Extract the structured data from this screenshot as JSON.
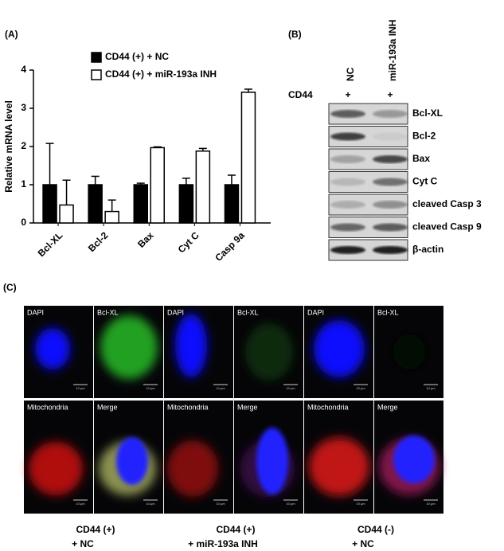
{
  "chart_data": {
    "type": "bar",
    "panel_label": "(A)",
    "y_label": "Relative mRNA level",
    "categories": [
      "Bcl-XL",
      "Bcl-2",
      "Bax",
      "Cyt C",
      "Casp 9a"
    ],
    "series": [
      {
        "name": "CD44 (+) + NC",
        "color": "#000000",
        "values": [
          1,
          1,
          1,
          1,
          1
        ],
        "errors": [
          1.08,
          0.22,
          0.04,
          0.17,
          0.25
        ]
      },
      {
        "name": "CD44 (+) + miR-193a INH",
        "color": "#ffffff",
        "values": [
          0.47,
          0.3,
          1.97,
          1.88,
          3.42
        ],
        "errors": [
          0.65,
          0.3,
          0.02,
          0.07,
          0.08
        ]
      }
    ],
    "ylim": [
      0,
      4
    ],
    "yticks": [
      0,
      1,
      2,
      3,
      4
    ],
    "grid": false
  },
  "panel_b": {
    "panel_label": "(B)",
    "lanes": [
      "NC",
      "miR-193a INH"
    ],
    "row_label": "CD44",
    "lane_marks": [
      "+",
      "+"
    ],
    "bands": [
      "Bcl-XL",
      "Bcl-2",
      "Bax",
      "Cyt C",
      "cleaved Casp 3",
      "cleaved Casp 9",
      "β-actin"
    ]
  },
  "panel_c": {
    "panel_label": "(C)",
    "scale_bar_label": "10 μm",
    "groups": [
      {
        "caption": [
          "CD44 (+)",
          "+ NC"
        ],
        "tiles": [
          "DAPI",
          "Bcl-XL",
          "Mitochondria",
          "Merge"
        ]
      },
      {
        "caption": [
          "CD44 (+)",
          "+ miR-193a INH"
        ],
        "tiles": [
          "DAPI",
          "Bcl-XL",
          "Mitochondria",
          "Merge"
        ]
      },
      {
        "caption": [
          "CD44 (-)",
          "+ NC"
        ],
        "tiles": [
          "DAPI",
          "Bcl-XL",
          "Mitochondria",
          "Merge"
        ]
      }
    ]
  }
}
